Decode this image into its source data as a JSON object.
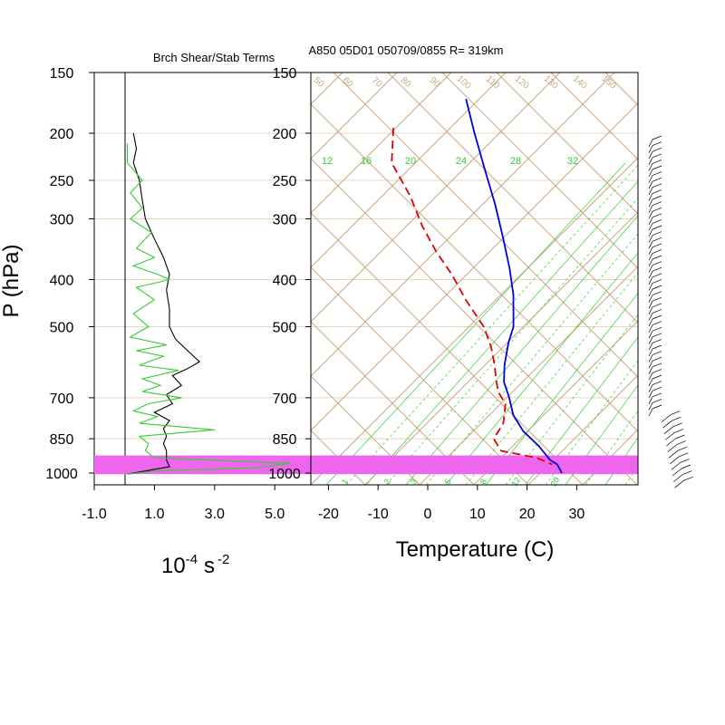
{
  "colors": {
    "adiabat": "#c8a882",
    "isobar_grid": "#e8d8bc",
    "mixing_ratio": "#33cc33",
    "temperature": "#0000dd",
    "dewpoint": "#dd0000",
    "highlight": "#ee66ee",
    "shear": "#000000",
    "stability": "#33cc33"
  },
  "chart_data": [
    {
      "type": "line",
      "title": "Brch Shear/Stab Terms",
      "ylabel": "P (hPa)",
      "xlabel_base": "10",
      "xlabel_exp": "-4",
      "xlabel_unit": "s",
      "xlabel_unit_exp": "-2",
      "x_ticks": [
        "-1.0",
        "1.0",
        "3.0",
        "5.0"
      ],
      "x_tick_values": [
        -1,
        1,
        3,
        5
      ],
      "y_ticks": [
        "150",
        "200",
        "250",
        "300",
        "400",
        "500",
        "700",
        "850",
        "1000"
      ],
      "y_tick_values": [
        150,
        200,
        250,
        300,
        400,
        500,
        700,
        850,
        1000
      ],
      "xlim": [
        -1,
        5.5
      ],
      "ylim": [
        1050,
        150
      ],
      "y_scale": "log",
      "series": [
        {
          "color": "#000000",
          "points": [
            [
              0.3,
              200
            ],
            [
              0.4,
              215
            ],
            [
              0.3,
              230
            ],
            [
              0.5,
              250
            ],
            [
              0.6,
              275
            ],
            [
              0.7,
              300
            ],
            [
              1.0,
              330
            ],
            [
              1.3,
              360
            ],
            [
              1.5,
              390
            ],
            [
              1.4,
              420
            ],
            [
              1.5,
              460
            ],
            [
              1.5,
              500
            ],
            [
              1.7,
              530
            ],
            [
              2.1,
              560
            ],
            [
              2.5,
              590
            ],
            [
              2.1,
              610
            ],
            [
              1.6,
              630
            ],
            [
              1.9,
              660
            ],
            [
              1.4,
              690
            ],
            [
              1.6,
              720
            ],
            [
              1.0,
              750
            ],
            [
              1.5,
              780
            ],
            [
              1.3,
              810
            ],
            [
              1.4,
              840
            ],
            [
              1.3,
              870
            ],
            [
              1.4,
              900
            ],
            [
              1.4,
              940
            ],
            [
              1.5,
              970
            ],
            [
              0.7,
              990
            ],
            [
              0.1,
              1005
            ]
          ]
        },
        {
          "color": "#33cc33",
          "points": [
            [
              0.1,
              210
            ],
            [
              0.1,
              230
            ],
            [
              0.6,
              250
            ],
            [
              0.2,
              265
            ],
            [
              0.6,
              285
            ],
            [
              0.2,
              300
            ],
            [
              0.9,
              320
            ],
            [
              0.4,
              345
            ],
            [
              1.0,
              360
            ],
            [
              0.3,
              375
            ],
            [
              1.1,
              390
            ],
            [
              1.5,
              400
            ],
            [
              0.4,
              415
            ],
            [
              1.0,
              440
            ],
            [
              0.3,
              470
            ],
            [
              0.8,
              500
            ],
            [
              0.2,
              525
            ],
            [
              1.4,
              545
            ],
            [
              0.4,
              560
            ],
            [
              1.3,
              575
            ],
            [
              0.5,
              600
            ],
            [
              1.8,
              615
            ],
            [
              0.6,
              640
            ],
            [
              1.2,
              660
            ],
            [
              0.6,
              680
            ],
            [
              1.9,
              700
            ],
            [
              0.8,
              720
            ],
            [
              0.3,
              745
            ],
            [
              1.1,
              765
            ],
            [
              0.5,
              790
            ],
            [
              3.0,
              815
            ],
            [
              0.5,
              840
            ],
            [
              0.8,
              870
            ],
            [
              0.7,
              900
            ],
            [
              1.0,
              930
            ],
            [
              5.5,
              955
            ],
            [
              4.5,
              975
            ],
            [
              1.0,
              990
            ],
            [
              0.1,
              1005
            ]
          ]
        }
      ]
    },
    {
      "type": "line",
      "title": "A850 05D01 050709/0855 R= 319km",
      "xlabel": "Temperature (C)",
      "x_ticks": [
        "-20",
        "-10",
        "0",
        "10",
        "20",
        "30"
      ],
      "x_tick_values": [
        -20,
        -10,
        0,
        10,
        20,
        30
      ],
      "y_ticks": [
        "150",
        "200",
        "250",
        "300",
        "400",
        "500",
        "700",
        "850",
        "1000"
      ],
      "y_tick_values": [
        150,
        200,
        250,
        300,
        400,
        500,
        700,
        850,
        1000
      ],
      "ylim": [
        1050,
        150
      ],
      "y_scale": "log",
      "highlight_band_hPa": [
        920,
        1005
      ],
      "mixing_ratio_labels": [
        "12",
        "16",
        "20",
        "24",
        "28",
        "32"
      ],
      "mixing_ratio_label_values": [
        12,
        16,
        20,
        24,
        28,
        32
      ],
      "mixing_ratio_bottom_labels": [
        "1",
        "2",
        "3",
        "5",
        "8",
        "12",
        "20"
      ],
      "mixing_ratio_bottom_values": [
        1,
        2,
        3,
        5,
        8,
        12,
        20
      ],
      "adiabat_labels": [
        "50",
        "60",
        "70",
        "80",
        "90",
        "100",
        "110",
        "120",
        "130",
        "140",
        "150"
      ],
      "adiabat_label_values": [
        50,
        60,
        70,
        80,
        90,
        100,
        110,
        120,
        130,
        140,
        150
      ],
      "series": [
        {
          "color": "#0000dd",
          "dashed": false,
          "points": [
            [
              -39,
              170
            ],
            [
              -33,
              200
            ],
            [
              -26,
              240
            ],
            [
              -20,
              280
            ],
            [
              -14,
              330
            ],
            [
              -9,
              380
            ],
            [
              -5,
              430
            ],
            [
              -1,
              500
            ],
            [
              0,
              540
            ],
            [
              2,
              600
            ],
            [
              4,
              650
            ],
            [
              7,
              700
            ],
            [
              10,
              760
            ],
            [
              14,
              820
            ],
            [
              19,
              880
            ],
            [
              23,
              940
            ],
            [
              25,
              960
            ],
            [
              27,
              1000
            ]
          ]
        },
        {
          "color": "#dd0000",
          "dashed": true,
          "points": [
            [
              -50,
              195
            ],
            [
              -46,
              230
            ],
            [
              -38,
              270
            ],
            [
              -32,
              310
            ],
            [
              -26,
              350
            ],
            [
              -20,
              390
            ],
            [
              -14,
              440
            ],
            [
              -7,
              500
            ],
            [
              -3,
              550
            ],
            [
              0,
              600
            ],
            [
              2,
              640
            ],
            [
              4,
              680
            ],
            [
              7,
              720
            ],
            [
              9,
              790
            ],
            [
              9,
              850
            ],
            [
              12,
              900
            ],
            [
              20,
              930
            ],
            [
              24,
              960
            ]
          ]
        }
      ]
    }
  ]
}
